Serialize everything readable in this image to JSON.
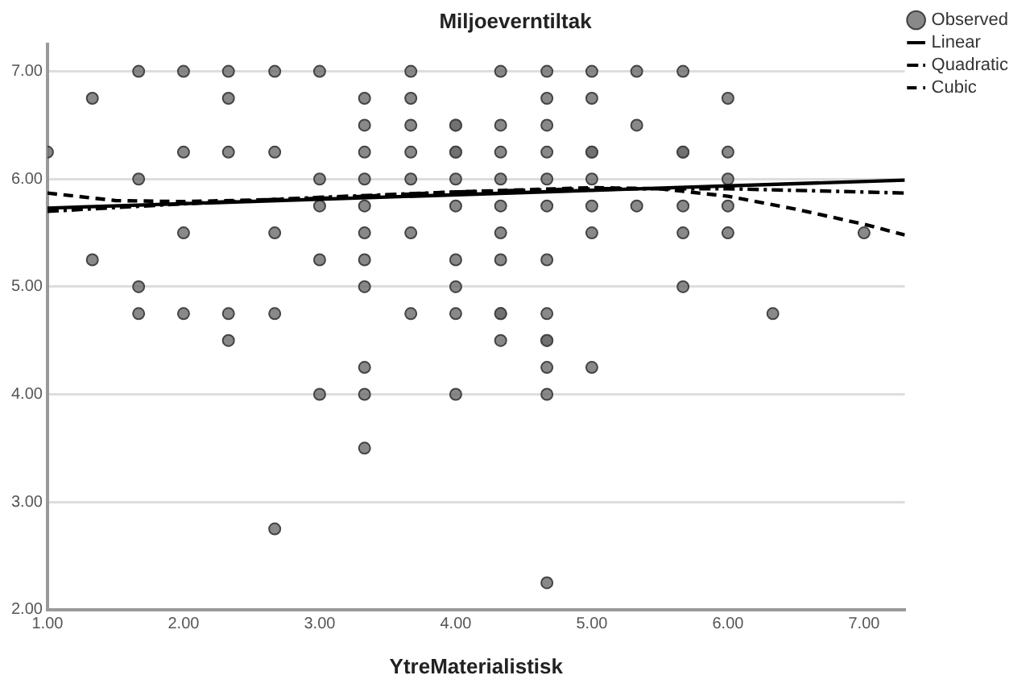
{
  "chart_data": {
    "type": "scatter",
    "title": "Miljoeverntiltak",
    "xlabel": "YtreMaterialistisk",
    "xlim": [
      1,
      7.3
    ],
    "xticks": [
      {
        "value": 1,
        "label": "1.00"
      },
      {
        "value": 2,
        "label": "2.00"
      },
      {
        "value": 3,
        "label": "3.00"
      },
      {
        "value": 4,
        "label": "4.00"
      },
      {
        "value": 5,
        "label": "5.00"
      },
      {
        "value": 6,
        "label": "6.00"
      },
      {
        "value": 7,
        "label": "7.00"
      }
    ],
    "ylim": [
      2,
      7.25
    ],
    "yticks": [
      {
        "value": 2,
        "label": "2.00"
      },
      {
        "value": 3,
        "label": "3.00"
      },
      {
        "value": 4,
        "label": "4.00"
      },
      {
        "value": 5,
        "label": "5.00"
      },
      {
        "value": 6,
        "label": "6.00"
      },
      {
        "value": 7,
        "label": "7.00"
      }
    ],
    "grid": "y",
    "legend": "top right",
    "series": [
      {
        "name": "Observed",
        "color": "#6b6b6b",
        "marker": "circle",
        "x": [
          1,
          1.33,
          1.33,
          1.67,
          1.67,
          1.67,
          1.67,
          2,
          2,
          2,
          2,
          2.33,
          2.33,
          2.33,
          2.33,
          2.33,
          2.67,
          2.67,
          2.67,
          2.67,
          2.67,
          3,
          3,
          3,
          3,
          3,
          3.33,
          3.33,
          3.33,
          3.33,
          3.33,
          3.33,
          3.33,
          3.33,
          3.33,
          3.33,
          3.33,
          3.67,
          3.67,
          3.67,
          3.67,
          3.67,
          3.67,
          3.67,
          4,
          4,
          4,
          4,
          4,
          4,
          4,
          4,
          4,
          4,
          4.33,
          4.33,
          4.33,
          4.33,
          4.33,
          4.33,
          4.33,
          4.33,
          4.33,
          4.33,
          4.67,
          4.67,
          4.67,
          4.67,
          4.67,
          4.67,
          4.67,
          4.67,
          4.67,
          4.67,
          4.67,
          4.67,
          4.67,
          5,
          5,
          5,
          5,
          5,
          5,
          5,
          5,
          5.33,
          5.33,
          5.33,
          5.67,
          5.67,
          5.67,
          5.67,
          5.67,
          5.67,
          6,
          6,
          6,
          6,
          6,
          6.33,
          7
        ],
        "values": [
          6.25,
          6.75,
          5.25,
          7,
          6,
          5,
          4.75,
          7,
          6.25,
          5.5,
          4.75,
          7,
          6.75,
          6.25,
          4.75,
          4.5,
          7,
          6.25,
          5.5,
          4.75,
          2.75,
          7,
          6,
          5.75,
          5.25,
          4,
          6.75,
          6.5,
          6.25,
          6,
          5.75,
          5.5,
          5.25,
          5,
          4.25,
          4,
          3.5,
          7,
          6.75,
          6.5,
          6.25,
          6,
          5.5,
          4.75,
          6.5,
          6.25,
          6,
          5.75,
          5.25,
          5,
          4.75,
          4,
          6.5,
          6.25,
          7,
          6.5,
          6.25,
          6,
          5.75,
          5.5,
          5.25,
          4.75,
          4.5,
          4.75,
          7,
          6.75,
          6.5,
          6.25,
          6,
          5.75,
          5.25,
          4.75,
          4.5,
          4.25,
          4,
          2.25,
          4.5,
          7,
          6.75,
          6.25,
          6,
          5.75,
          5.5,
          4.25,
          6.25,
          7,
          6.5,
          5.75,
          7,
          6.25,
          5.75,
          5.5,
          5,
          6.25,
          6.75,
          6.25,
          5.75,
          5.5,
          6,
          4.75,
          5.5
        ]
      },
      {
        "name": "Linear",
        "type": "line",
        "color": "#000000",
        "line_style": "solid",
        "marker": "none",
        "x": [
          1,
          7.3
        ],
        "values": [
          5.73,
          5.99
        ]
      },
      {
        "name": "Quadratic",
        "type": "line",
        "color": "#000000",
        "line_style": "dashdot",
        "marker": "none",
        "x": [
          1,
          2,
          3,
          4,
          5,
          6,
          7.3
        ],
        "values": [
          5.7,
          5.77,
          5.83,
          5.88,
          5.91,
          5.91,
          5.87
        ]
      },
      {
        "name": "Cubic",
        "type": "line",
        "color": "#000000",
        "line_style": "dashed",
        "marker": "none",
        "x": [
          1,
          1.5,
          2,
          3,
          4,
          5,
          5.5,
          6,
          6.5,
          7,
          7.3
        ],
        "values": [
          5.87,
          5.8,
          5.79,
          5.82,
          5.88,
          5.92,
          5.91,
          5.84,
          5.72,
          5.58,
          5.48
        ]
      }
    ]
  }
}
